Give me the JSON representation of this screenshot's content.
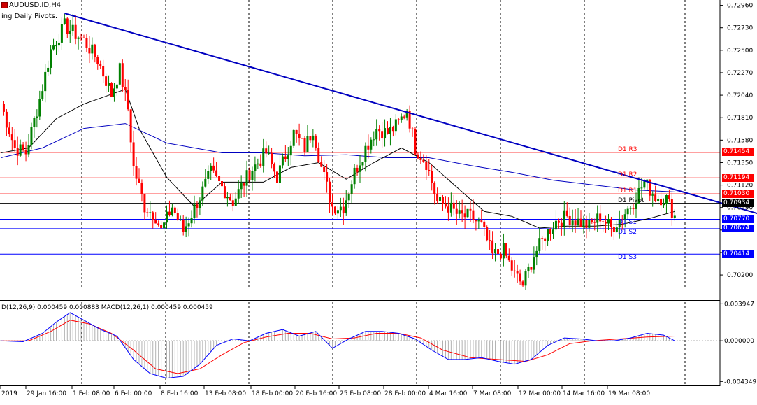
{
  "header": {
    "symbol_label": "AUDUSD.ID,H4",
    "indicator_label": "ing Daily Pivots."
  },
  "macd_header": "D(12,26,9) 0.000459 0.000883 MACD(12,26,1) 0.000459 0.000459",
  "colors": {
    "bull": "#008000",
    "bear": "#ff0000",
    "trendline": "#0000c0",
    "resistance": "#ff0000",
    "support": "#0000ff",
    "pivot": "#000000",
    "ma_fast": "#000000",
    "ma_slow": "#0000c0",
    "macd_main": "#0000ff",
    "macd_signal": "#ff0000",
    "histogram": "#b0b0b0"
  },
  "price_axis": {
    "min": 0.6995,
    "max": 0.73,
    "ticks": [
      "0.72960",
      "0.72730",
      "0.72500",
      "0.72270",
      "0.72040",
      "0.71810",
      "0.71580",
      "0.71350",
      "0.71120",
      "0.70890",
      "0.70660",
      "0.70430",
      "0.70200"
    ]
  },
  "pivot_levels": [
    {
      "name": "D1 R3",
      "price": "0.71454",
      "kind": "resistance"
    },
    {
      "name": "D1 R2",
      "price": "0.71194",
      "kind": "resistance"
    },
    {
      "name": "D1 R1",
      "price": "0.71030",
      "kind": "resistance"
    },
    {
      "name": "D1 Pivot",
      "price": "0.70934",
      "kind": "pivot"
    },
    {
      "name": "D1 S1",
      "price": "0.70770",
      "kind": "support"
    },
    {
      "name": "D1 S2",
      "price": "0.70674",
      "kind": "support"
    },
    {
      "name": "D1 S3",
      "price": "0.70414",
      "kind": "support"
    }
  ],
  "time_labels": [
    "2019",
    "29 Jan 16:00",
    "1 Feb 08:00",
    "6 Feb 00:00",
    "8 Feb 16:00",
    "13 Feb 08:00",
    "18 Feb 00:00",
    "20 Feb 16:00",
    "25 Feb 08:00",
    "28 Feb 00:00",
    "4 Mar 16:00",
    "7 Mar 08:00",
    "12 Mar 00:00",
    "14 Mar 16:00",
    "19 Mar 08:00"
  ],
  "macd_axis": {
    "min": -0.0047,
    "max": 0.0042,
    "ticks": [
      "0.003947",
      "0.000000",
      "-0.004349"
    ]
  },
  "chart_data": {
    "type": "candlestick",
    "title": "AUDUSD.ID,H4",
    "price_path": [
      {
        "bar": 0,
        "price": 0.7195
      },
      {
        "bar": 5,
        "price": 0.715
      },
      {
        "bar": 9,
        "price": 0.7145
      },
      {
        "bar": 14,
        "price": 0.72
      },
      {
        "bar": 18,
        "price": 0.725
      },
      {
        "bar": 23,
        "price": 0.7275
      },
      {
        "bar": 30,
        "price": 0.726
      },
      {
        "bar": 35,
        "price": 0.724
      },
      {
        "bar": 40,
        "price": 0.7205
      },
      {
        "bar": 43,
        "price": 0.723
      },
      {
        "bar": 46,
        "price": 0.719
      },
      {
        "bar": 48,
        "price": 0.713
      },
      {
        "bar": 52,
        "price": 0.709
      },
      {
        "bar": 56,
        "price": 0.708
      },
      {
        "bar": 58,
        "price": 0.7065
      },
      {
        "bar": 62,
        "price": 0.709
      },
      {
        "bar": 66,
        "price": 0.7065
      },
      {
        "bar": 72,
        "price": 0.71
      },
      {
        "bar": 76,
        "price": 0.7125
      },
      {
        "bar": 80,
        "price": 0.711
      },
      {
        "bar": 84,
        "price": 0.7095
      },
      {
        "bar": 90,
        "price": 0.7125
      },
      {
        "bar": 96,
        "price": 0.7145
      },
      {
        "bar": 100,
        "price": 0.712
      },
      {
        "bar": 106,
        "price": 0.7165
      },
      {
        "bar": 110,
        "price": 0.715
      },
      {
        "bar": 113,
        "price": 0.717
      },
      {
        "bar": 116,
        "price": 0.713
      },
      {
        "bar": 120,
        "price": 0.709
      },
      {
        "bar": 124,
        "price": 0.709
      },
      {
        "bar": 128,
        "price": 0.7125
      },
      {
        "bar": 132,
        "price": 0.715
      },
      {
        "bar": 136,
        "price": 0.717
      },
      {
        "bar": 140,
        "price": 0.7165
      },
      {
        "bar": 144,
        "price": 0.7175
      },
      {
        "bar": 147,
        "price": 0.719
      },
      {
        "bar": 150,
        "price": 0.715
      },
      {
        "bar": 154,
        "price": 0.7135
      },
      {
        "bar": 158,
        "price": 0.7095
      },
      {
        "bar": 162,
        "price": 0.709
      },
      {
        "bar": 166,
        "price": 0.708
      },
      {
        "bar": 170,
        "price": 0.708
      },
      {
        "bar": 174,
        "price": 0.707
      },
      {
        "bar": 178,
        "price": 0.704
      },
      {
        "bar": 182,
        "price": 0.7045
      },
      {
        "bar": 186,
        "price": 0.702
      },
      {
        "bar": 189,
        "price": 0.701
      },
      {
        "bar": 193,
        "price": 0.704
      },
      {
        "bar": 197,
        "price": 0.706
      },
      {
        "bar": 201,
        "price": 0.7075
      },
      {
        "bar": 205,
        "price": 0.708
      },
      {
        "bar": 209,
        "price": 0.7075
      },
      {
        "bar": 213,
        "price": 0.707
      },
      {
        "bar": 217,
        "price": 0.708
      },
      {
        "bar": 221,
        "price": 0.7068
      },
      {
        "bar": 225,
        "price": 0.708
      },
      {
        "bar": 229,
        "price": 0.7095
      },
      {
        "bar": 233,
        "price": 0.7115
      },
      {
        "bar": 237,
        "price": 0.71
      },
      {
        "bar": 241,
        "price": 0.7098
      },
      {
        "bar": 244,
        "price": 0.708
      }
    ],
    "ma_fast_path": [
      {
        "bar": 0,
        "price": 0.7145
      },
      {
        "bar": 10,
        "price": 0.715
      },
      {
        "bar": 20,
        "price": 0.718
      },
      {
        "bar": 30,
        "price": 0.7195
      },
      {
        "bar": 40,
        "price": 0.7205
      },
      {
        "bar": 45,
        "price": 0.721
      },
      {
        "bar": 50,
        "price": 0.717
      },
      {
        "bar": 60,
        "price": 0.712
      },
      {
        "bar": 70,
        "price": 0.709
      },
      {
        "bar": 80,
        "price": 0.7115
      },
      {
        "bar": 95,
        "price": 0.7115
      },
      {
        "bar": 105,
        "price": 0.713
      },
      {
        "bar": 115,
        "price": 0.7135
      },
      {
        "bar": 125,
        "price": 0.7118
      },
      {
        "bar": 135,
        "price": 0.7135
      },
      {
        "bar": 145,
        "price": 0.715
      },
      {
        "bar": 155,
        "price": 0.7135
      },
      {
        "bar": 165,
        "price": 0.711
      },
      {
        "bar": 175,
        "price": 0.7085
      },
      {
        "bar": 185,
        "price": 0.708
      },
      {
        "bar": 195,
        "price": 0.7068
      },
      {
        "bar": 205,
        "price": 0.707
      },
      {
        "bar": 215,
        "price": 0.707
      },
      {
        "bar": 225,
        "price": 0.7072
      },
      {
        "bar": 235,
        "price": 0.7078
      },
      {
        "bar": 244,
        "price": 0.7085
      }
    ],
    "ma_slow_path": [
      {
        "bar": 0,
        "price": 0.714
      },
      {
        "bar": 15,
        "price": 0.715
      },
      {
        "bar": 30,
        "price": 0.717
      },
      {
        "bar": 45,
        "price": 0.7175
      },
      {
        "bar": 60,
        "price": 0.7155
      },
      {
        "bar": 80,
        "price": 0.7145
      },
      {
        "bar": 95,
        "price": 0.7145
      },
      {
        "bar": 110,
        "price": 0.7142
      },
      {
        "bar": 125,
        "price": 0.7143
      },
      {
        "bar": 140,
        "price": 0.714
      },
      {
        "bar": 155,
        "price": 0.714
      },
      {
        "bar": 170,
        "price": 0.7132
      },
      {
        "bar": 185,
        "price": 0.7125
      },
      {
        "bar": 200,
        "price": 0.7117
      },
      {
        "bar": 215,
        "price": 0.7112
      },
      {
        "bar": 230,
        "price": 0.7107
      },
      {
        "bar": 244,
        "price": 0.7105
      }
    ],
    "trendline": {
      "from": {
        "bar": 23,
        "price": 0.72878
      },
      "to": {
        "bar": 280,
        "price": 0.7078
      }
    },
    "macd_main_path": [
      {
        "bar": 0,
        "value": 0.0
      },
      {
        "bar": 8,
        "value": -0.0001
      },
      {
        "bar": 15,
        "value": 0.0008
      },
      {
        "bar": 20,
        "value": 0.002
      },
      {
        "bar": 25,
        "value": 0.003
      },
      {
        "bar": 30,
        "value": 0.0022
      },
      {
        "bar": 36,
        "value": 0.0012
      },
      {
        "bar": 42,
        "value": 0.0005
      },
      {
        "bar": 48,
        "value": -0.002
      },
      {
        "bar": 54,
        "value": -0.0035
      },
      {
        "bar": 60,
        "value": -0.004
      },
      {
        "bar": 66,
        "value": -0.0038
      },
      {
        "bar": 72,
        "value": -0.0025
      },
      {
        "bar": 78,
        "value": -0.0005
      },
      {
        "bar": 84,
        "value": 0.0002
      },
      {
        "bar": 90,
        "value": 0.0
      },
      {
        "bar": 96,
        "value": 0.0008
      },
      {
        "bar": 102,
        "value": 0.0012
      },
      {
        "bar": 108,
        "value": 0.0005
      },
      {
        "bar": 114,
        "value": 0.001
      },
      {
        "bar": 120,
        "value": -0.0008
      },
      {
        "bar": 126,
        "value": 0.0002
      },
      {
        "bar": 132,
        "value": 0.001
      },
      {
        "bar": 138,
        "value": 0.001
      },
      {
        "bar": 144,
        "value": 0.0008
      },
      {
        "bar": 150,
        "value": 0.0002
      },
      {
        "bar": 156,
        "value": -0.001
      },
      {
        "bar": 162,
        "value": -0.002
      },
      {
        "bar": 168,
        "value": -0.002
      },
      {
        "bar": 174,
        "value": -0.0018
      },
      {
        "bar": 180,
        "value": -0.0022
      },
      {
        "bar": 186,
        "value": -0.0025
      },
      {
        "bar": 192,
        "value": -0.002
      },
      {
        "bar": 198,
        "value": -0.0005
      },
      {
        "bar": 204,
        "value": 0.0003
      },
      {
        "bar": 210,
        "value": 0.0002
      },
      {
        "bar": 216,
        "value": 0.0
      },
      {
        "bar": 222,
        "value": 0.0
      },
      {
        "bar": 228,
        "value": 0.0003
      },
      {
        "bar": 234,
        "value": 0.0008
      },
      {
        "bar": 240,
        "value": 0.0006
      },
      {
        "bar": 244,
        "value": 0.0
      }
    ],
    "macd_signal_path": [
      {
        "bar": 0,
        "value": 0.0
      },
      {
        "bar": 10,
        "value": 0.0
      },
      {
        "bar": 18,
        "value": 0.001
      },
      {
        "bar": 25,
        "value": 0.0022
      },
      {
        "bar": 32,
        "value": 0.0018
      },
      {
        "bar": 40,
        "value": 0.0008
      },
      {
        "bar": 48,
        "value": -0.001
      },
      {
        "bar": 56,
        "value": -0.003
      },
      {
        "bar": 64,
        "value": -0.0035
      },
      {
        "bar": 72,
        "value": -0.003
      },
      {
        "bar": 80,
        "value": -0.0015
      },
      {
        "bar": 88,
        "value": -0.0002
      },
      {
        "bar": 96,
        "value": 0.0004
      },
      {
        "bar": 104,
        "value": 0.0008
      },
      {
        "bar": 112,
        "value": 0.0008
      },
      {
        "bar": 120,
        "value": 0.0002
      },
      {
        "bar": 128,
        "value": 0.0003
      },
      {
        "bar": 136,
        "value": 0.0008
      },
      {
        "bar": 144,
        "value": 0.0008
      },
      {
        "bar": 152,
        "value": 0.0003
      },
      {
        "bar": 160,
        "value": -0.001
      },
      {
        "bar": 170,
        "value": -0.0018
      },
      {
        "bar": 180,
        "value": -0.002
      },
      {
        "bar": 190,
        "value": -0.0022
      },
      {
        "bar": 198,
        "value": -0.0015
      },
      {
        "bar": 206,
        "value": -0.0003
      },
      {
        "bar": 214,
        "value": 0.0
      },
      {
        "bar": 224,
        "value": 0.0002
      },
      {
        "bar": 234,
        "value": 0.0004
      },
      {
        "bar": 244,
        "value": 0.0005
      }
    ]
  }
}
